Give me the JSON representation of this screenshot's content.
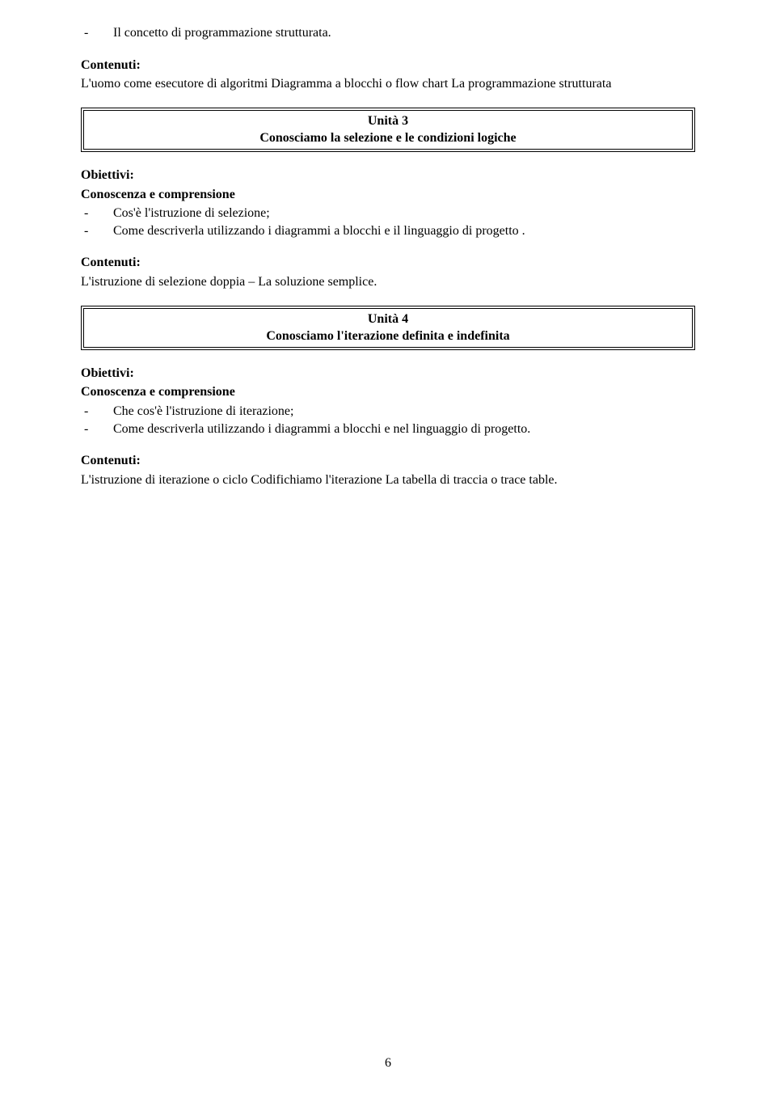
{
  "bullet1": {
    "text": "Il concetto di programmazione strutturata."
  },
  "contenuti_label": "Contenuti:",
  "obiettivi_label": "Obiettivi:",
  "conoscenza_label": "Conoscenza e comprensione",
  "block1": {
    "contenuti_text": "L'uomo come esecutore di algoritmi Diagramma a blocchi o flow chart La programmazione strutturata"
  },
  "unit3": {
    "title": "Unità 3",
    "subtitle": "Conosciamo la selezione e le condizioni logiche"
  },
  "block2": {
    "bullet1": "Cos'è l'istruzione di selezione;",
    "bullet2": "Come descriverla utilizzando i diagrammi a blocchi e il linguaggio di progetto .",
    "contenuti_text": "L'istruzione di selezione doppia – La soluzione semplice."
  },
  "unit4": {
    "title": "Unità 4",
    "subtitle": "Conosciamo l'iterazione definita e indefinita"
  },
  "block3": {
    "bullet1": "Che cos'è l'istruzione di iterazione;",
    "bullet2": "Come descriverla utilizzando i diagrammi a blocchi e nel linguaggio di progetto.",
    "contenuti_text": "L'istruzione di iterazione o ciclo Codifichiamo l'iterazione La tabella di traccia o trace table."
  },
  "page_number": "6"
}
